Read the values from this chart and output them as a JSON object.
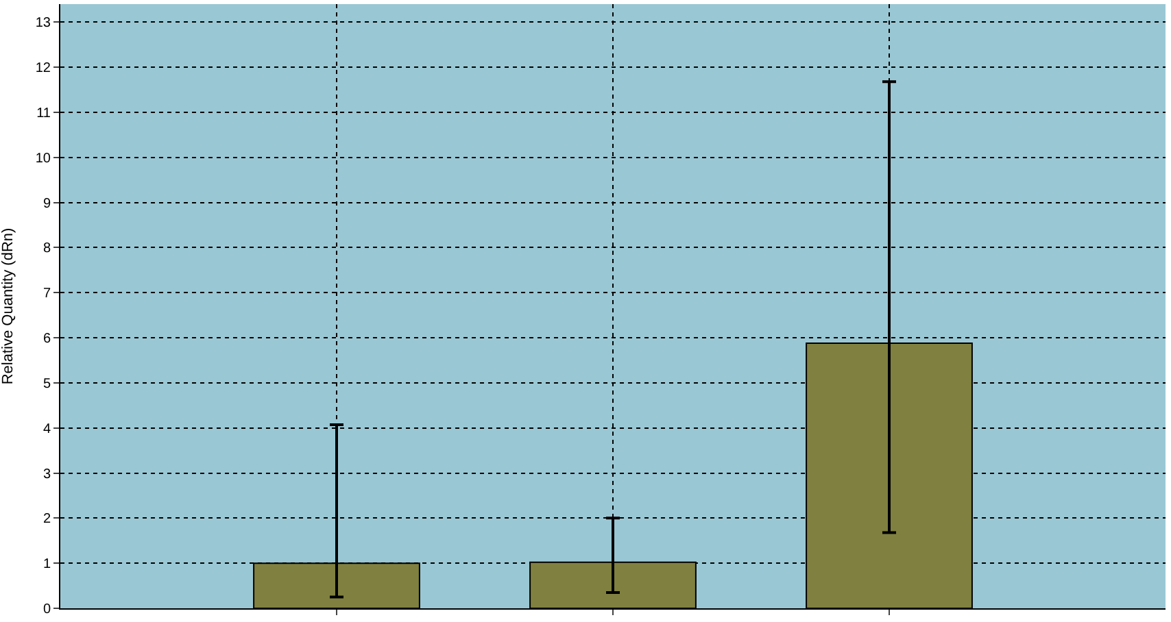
{
  "chart_data": {
    "type": "bar",
    "ylabel": "Relative Quantity (dRn)",
    "categories": [
      null,
      null,
      null
    ],
    "values": [
      1.0,
      1.02,
      5.88
    ],
    "errors": [
      [
        0.25,
        4.07
      ],
      [
        0.35,
        2.0
      ],
      [
        1.68,
        11.68
      ]
    ],
    "color": "#808040",
    "ylim": [
      0,
      13.4
    ],
    "yticks": [
      0,
      1,
      2,
      3,
      4,
      5,
      6,
      7,
      8,
      9,
      10,
      11,
      12,
      13
    ],
    "grid": true,
    "tick_labels": "y"
  }
}
